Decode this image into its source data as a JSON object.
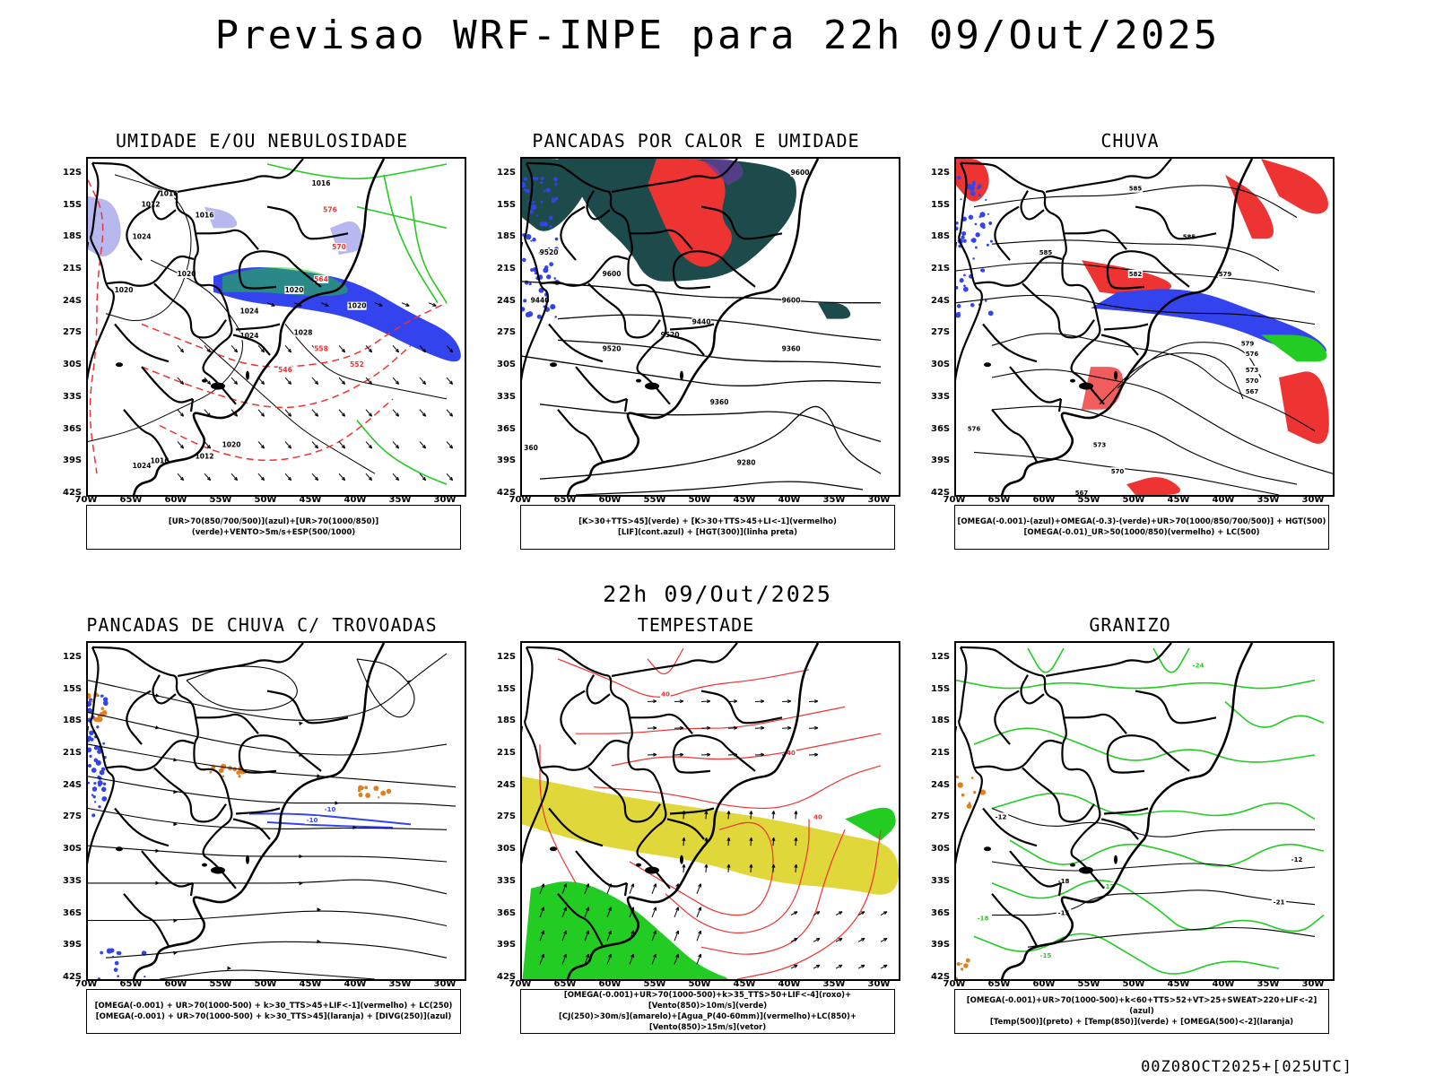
{
  "title": "Previsao WRF-INPE  para 22h 09/Out/2025",
  "mid_title": "22h 09/Out/2025",
  "footer": "00Z08OCT2025+[025UTC]",
  "axes": {
    "lat_labels": [
      "12S",
      "15S",
      "18S",
      "21S",
      "24S",
      "27S",
      "30S",
      "33S",
      "36S",
      "39S",
      "42S"
    ],
    "lon_labels": [
      "70W",
      "65W",
      "60W",
      "55W",
      "50W",
      "45W",
      "40W",
      "35W",
      "30W"
    ]
  },
  "panels": [
    {
      "id": "umidade",
      "title": "UMIDADE E/OU NEBULOSIDADE",
      "legend": [
        "[UR>70(850/700/500)](azul)+[UR>70(1000/850)](verde)+VENTO>5m/s+ESP(500/1000)"
      ],
      "contour_labels": [
        "1016",
        "1012",
        "1016",
        "1020",
        "1024",
        "1020",
        "1020",
        "1024",
        "1028",
        "1024",
        "1020",
        "1016",
        "1012",
        "1024",
        "1020",
        "576",
        "570",
        "564",
        "558",
        "552",
        "546",
        "1016"
      ]
    },
    {
      "id": "pancadas-calor",
      "title": "PANCADAS POR CALOR E UMIDADE",
      "legend": [
        "[K>30+TTS>45](verde) + [K>30+TTS>45+LI<-1](vermelho)",
        "[LIF](cont.azul) + [HGT(300)](linha preta)"
      ],
      "contour_labels": [
        "9600",
        "9520",
        "9600",
        "9440",
        "9520",
        "9600",
        "9520",
        "9440",
        "9360",
        "9360",
        "9280",
        "360"
      ]
    },
    {
      "id": "chuva",
      "title": "CHUVA",
      "legend": [
        "[OMEGA(-0.001)-(azul)+OMEGA(-0.3)-(verde)+UR>70(1000/850/700/500)] + HGT(500)",
        "[OMEGA(-0.01)_UR>50(1000/850)(vermelho) + LC(500)"
      ],
      "contour_labels": [
        "585",
        "585",
        "582",
        "579",
        "585",
        "579",
        "576",
        "573",
        "570",
        "567",
        "576",
        "573",
        "570",
        "567"
      ]
    },
    {
      "id": "pancadas-trovoadas",
      "title": "PANCADAS DE CHUVA C/ TROVOADAS",
      "legend": [
        "[OMEGA(-0.001) + UR>70(1000-500) + k>30_TTS>45+LIF<-1](vermelho) + LC(250)",
        "[OMEGA(-0.001) + UR>70(1000-500) + k>30_TTS>45](laranja) + [DIVG(250)](azul)"
      ],
      "contour_labels": [
        "-10",
        "-10"
      ]
    },
    {
      "id": "tempestade",
      "title": "TEMPESTADE",
      "legend": [
        "[OMEGA(-0.001)+UR>70(1000-500)+k>35_TTS>50+LIF<-4](roxo)+[Vento(850)>10m/s](verde)",
        "[CJ(250)>30m/s](amarelo)+[Agua_P(40-60mm)](vermelho)+LC(850)+[Vento(850)>15m/s](vetor)"
      ],
      "contour_labels": [
        "40",
        "40",
        "40"
      ]
    },
    {
      "id": "granizo",
      "title": "GRANIZO",
      "legend": [
        "[OMEGA(-0.001)+UR>70(1000-500)+k<60+TTS>52+VT>25+SWEAT>220+LIF<-2](azul)",
        "[Temp(500)](preto) + [Temp(850)](verde) + [OMEGA(500)<-2](laranja)"
      ],
      "contour_labels": [
        "-12",
        "-12",
        "-15",
        "-18",
        "-21",
        "-18",
        "-15",
        "-12",
        "-24"
      ]
    }
  ],
  "colors": {
    "blue": "#3344ee",
    "lightblue": "#b8b8f0",
    "green": "#22cc22",
    "red": "#ee3333",
    "darkteal": "#1d4a4a",
    "yellow": "#e0d83a",
    "orange": "#e08020",
    "black": "#000000"
  }
}
